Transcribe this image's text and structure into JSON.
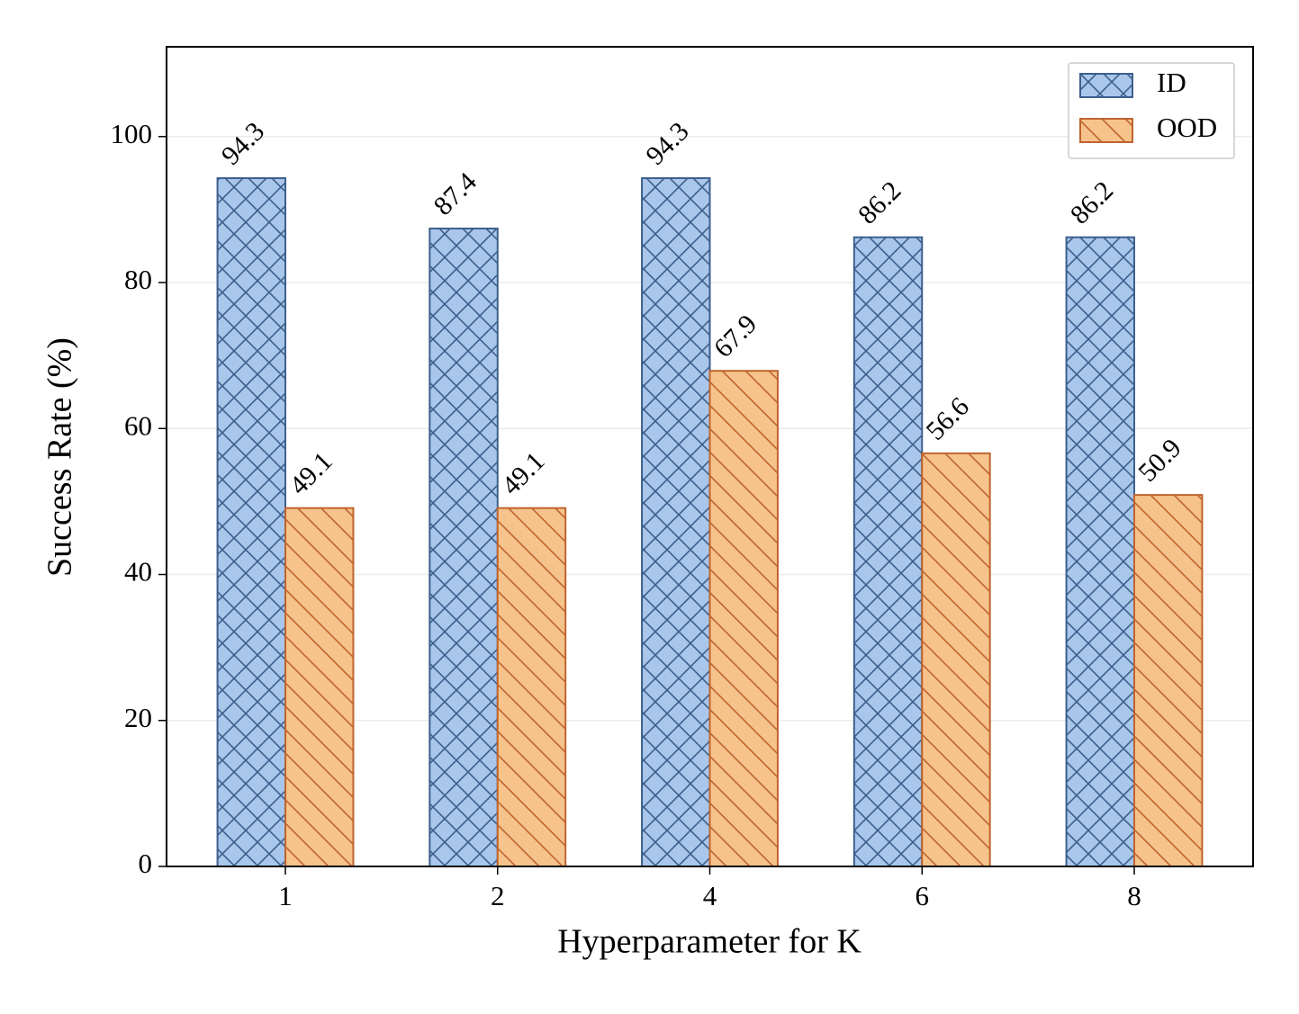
{
  "chart_data": {
    "type": "bar",
    "x_label": "Hyperparameter for K",
    "y_label": "Success Rate (%)",
    "categories": [
      "1",
      "2",
      "4",
      "6",
      "8"
    ],
    "series": [
      {
        "name": "ID",
        "color": "#a9c7ea",
        "edge_color": "#3d5f8d",
        "hatch": "x",
        "values": [
          94.3,
          87.4,
          94.3,
          86.2,
          86.2
        ]
      },
      {
        "name": "OOD",
        "color": "#f5c38b",
        "edge_color": "#c0642e",
        "hatch": "\\",
        "values": [
          49.1,
          49.1,
          67.9,
          56.6,
          50.9
        ]
      }
    ],
    "ylim": [
      0,
      112.3
    ],
    "yticks": [
      0,
      20,
      40,
      60,
      80,
      100
    ],
    "grid": true,
    "legend": "upper right"
  }
}
